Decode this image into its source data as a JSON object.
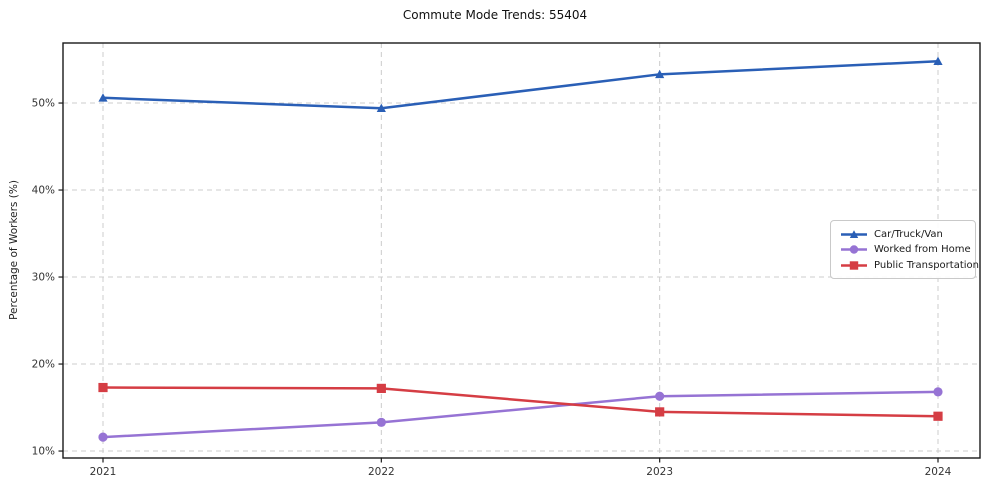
{
  "chart_data": {
    "type": "line",
    "title": "Commute Mode Trends: 55404",
    "xlabel": "",
    "ylabel": "Percentage of Workers (%)",
    "categories": [
      "2021",
      "2022",
      "2023",
      "2024"
    ],
    "series": [
      {
        "name": "Car/Truck/Van",
        "marker": "triangle",
        "color": "#2a5fb6",
        "values": [
          50.6,
          49.4,
          53.3,
          54.8
        ]
      },
      {
        "name": "Worked from Home",
        "marker": "circle",
        "color": "#9673d4",
        "values": [
          11.6,
          13.3,
          16.3,
          16.8
        ]
      },
      {
        "name": "Public Transportation",
        "marker": "square",
        "color": "#d53d44",
        "values": [
          17.3,
          17.2,
          14.5,
          14.0
        ]
      }
    ],
    "yticks": [
      10,
      20,
      30,
      40,
      50
    ],
    "ytick_labels": [
      "10%",
      "20%",
      "30%",
      "40%",
      "50%"
    ],
    "ylim": [
      9.2,
      56.9
    ],
    "grid": true,
    "grid_style": "dashed",
    "legend_position": "right-middle"
  },
  "colors": {
    "background": "#ffffff",
    "grid": "#cccccc",
    "spine": "#1a1a1a",
    "tick_label": "#333333",
    "title": "#111111"
  }
}
